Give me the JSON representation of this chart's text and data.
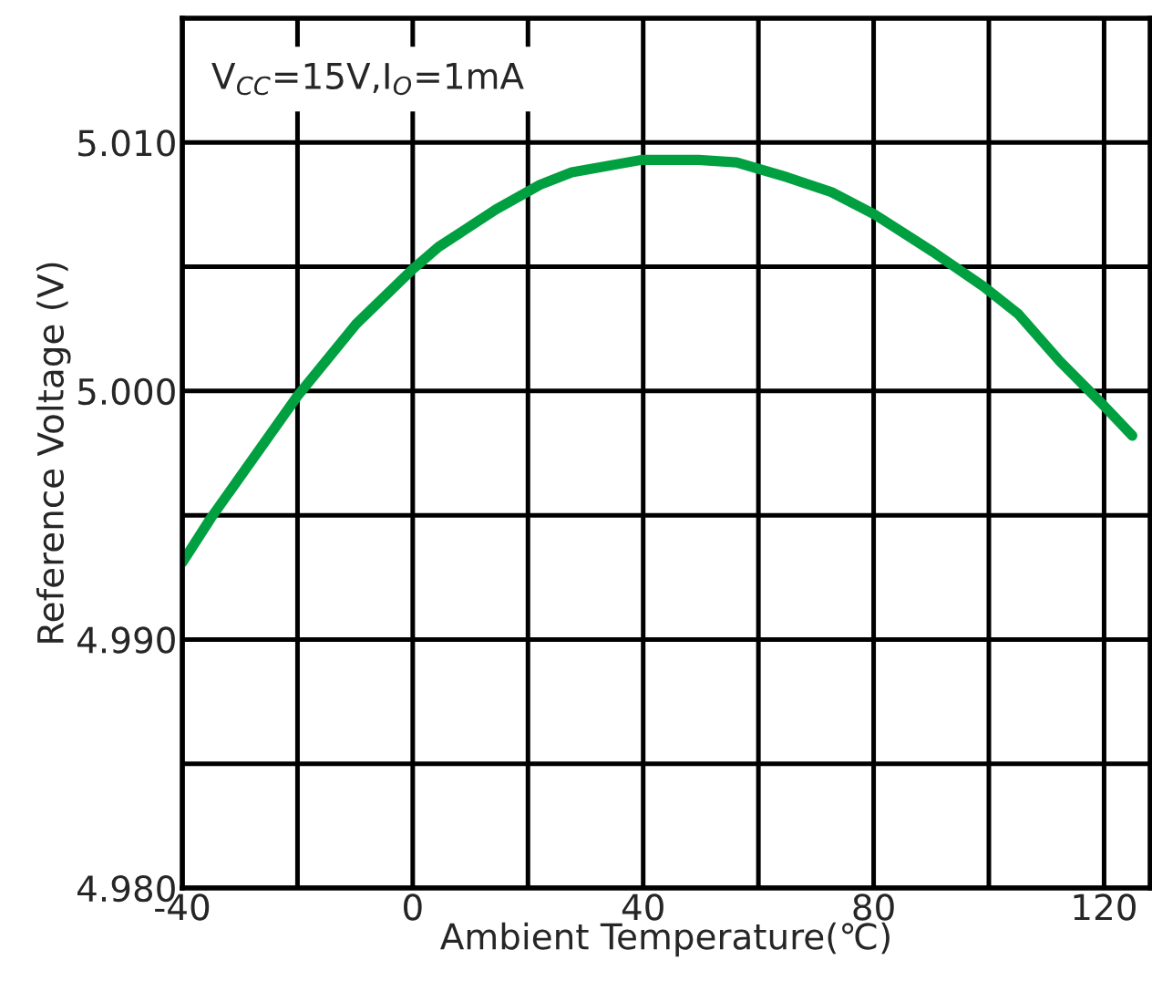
{
  "chart_data": {
    "type": "line",
    "xlabel": "Ambient Temperature(℃)",
    "ylabel": "Reference Voltage (V)",
    "annotations": [
      "V$_{CC}$=15V,I$_{O}$=1mA"
    ],
    "xlim": [
      -40,
      128
    ],
    "ylim": [
      4.98,
      5.015
    ],
    "xticks": [
      -40,
      {
        "value": -20,
        "label": null
      },
      0,
      {
        "value": 20,
        "label": null
      },
      40,
      {
        "value": 60,
        "label": null
      },
      80,
      {
        "value": 100,
        "label": null
      },
      120
    ],
    "yticks": [
      {
        "value": 4.98,
        "label": "4.980"
      },
      {
        "value": 4.985,
        "label": null
      },
      {
        "value": 4.99,
        "label": "4.990"
      },
      {
        "value": 4.995,
        "label": null
      },
      {
        "value": 5.0,
        "label": "5.000"
      },
      {
        "value": 5.005,
        "label": null
      },
      {
        "value": 5.01,
        "label": "5.010"
      }
    ],
    "grid": true,
    "marker": "none",
    "line_style": "solid",
    "series": [
      {
        "color": "#00a040",
        "x": [
          -40,
          -35,
          -20,
          -9.8,
          0,
          4.5,
          14.4,
          22.1,
          27.6,
          39.7,
          49.6,
          56.2,
          65,
          72.7,
          80.2,
          90.3,
          99.1,
          105.1,
          112.3,
          120,
          124.9
        ],
        "values": [
          4.9931,
          4.9949,
          4.9998,
          5.0027,
          5.0049,
          5.0058,
          5.0073,
          5.0083,
          5.0088,
          5.0093,
          5.0093,
          5.0092,
          5.0086,
          5.008,
          5.0071,
          5.0056,
          5.0042,
          5.0031,
          5.0012,
          4.9994,
          4.9982
        ]
      }
    ]
  }
}
